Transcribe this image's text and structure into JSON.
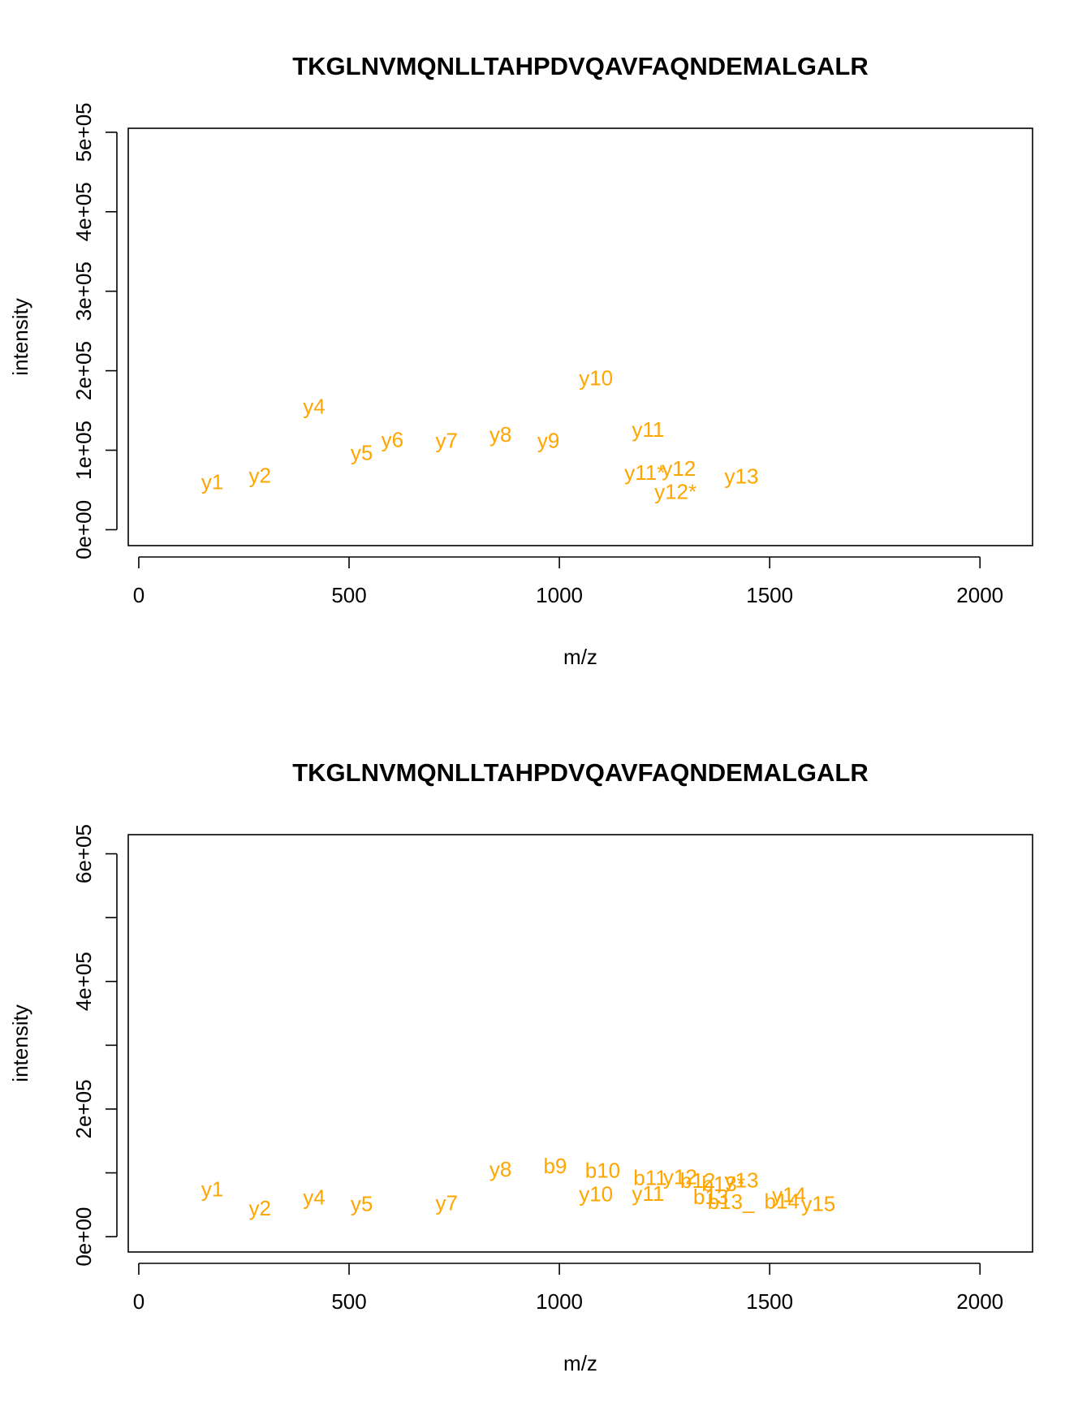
{
  "colors": {
    "label": "#FFA500",
    "axis": "#000000"
  },
  "chart_data": [
    {
      "type": "scatter",
      "title": "TKGLNVMQNLLTAHPDVQAVFAQNDEMALGALR",
      "xlabel": "m/z",
      "ylabel": "intensity",
      "xlim": [
        -25,
        2125
      ],
      "ylim": [
        -20000,
        505000
      ],
      "xticks": [
        0,
        500,
        1000,
        1500,
        2000
      ],
      "xtick_labels": [
        "0",
        "500",
        "1000",
        "1500",
        "2000"
      ],
      "yticks": [
        0,
        100000,
        200000,
        300000,
        400000,
        500000
      ],
      "ytick_labels": [
        "0e+00",
        "1e+05",
        "2e+05",
        "3e+05",
        "4e+05",
        "5e+05"
      ],
      "labels": [
        {
          "text": "y1",
          "x": 175,
          "y": 58000
        },
        {
          "text": "y2",
          "x": 288,
          "y": 66000
        },
        {
          "text": "y4",
          "x": 417,
          "y": 153000
        },
        {
          "text": "y5",
          "x": 530,
          "y": 95000
        },
        {
          "text": "y6",
          "x": 603,
          "y": 111000
        },
        {
          "text": "y7",
          "x": 732,
          "y": 110000
        },
        {
          "text": "y8",
          "x": 860,
          "y": 118000
        },
        {
          "text": "y9",
          "x": 974,
          "y": 110000
        },
        {
          "text": "y10",
          "x": 1087,
          "y": 189000
        },
        {
          "text": "y11",
          "x": 1211,
          "y": 124000
        },
        {
          "text": "y11*",
          "x": 1203,
          "y": 70000
        },
        {
          "text": "y12",
          "x": 1284,
          "y": 75000
        },
        {
          "text": "y12*",
          "x": 1276,
          "y": 46000
        },
        {
          "text": "y13",
          "x": 1433,
          "y": 65000
        }
      ]
    },
    {
      "type": "scatter",
      "title": "TKGLNVMQNLLTAHPDVQAVFAQNDEMALGALR",
      "xlabel": "m/z",
      "ylabel": "intensity",
      "xlim": [
        -25,
        2125
      ],
      "ylim": [
        -24000,
        630000
      ],
      "xticks": [
        0,
        500,
        1000,
        1500,
        2000
      ],
      "xtick_labels": [
        "0",
        "500",
        "1000",
        "1500",
        "2000"
      ],
      "yticks": [
        0,
        100000,
        200000,
        300000,
        400000,
        500000,
        600000
      ],
      "ytick_labels": [
        "0e+00",
        "",
        "2e+05",
        "",
        "4e+05",
        "",
        "6e+05"
      ],
      "labels": [
        {
          "text": "y1",
          "x": 175,
          "y": 72000
        },
        {
          "text": "y2",
          "x": 288,
          "y": 42000
        },
        {
          "text": "y4",
          "x": 417,
          "y": 59000
        },
        {
          "text": "y5",
          "x": 530,
          "y": 49000
        },
        {
          "text": "y7",
          "x": 732,
          "y": 50000
        },
        {
          "text": "y8",
          "x": 860,
          "y": 103000
        },
        {
          "text": "b9",
          "x": 990,
          "y": 108000
        },
        {
          "text": "b10",
          "x": 1103,
          "y": 101000
        },
        {
          "text": "y10",
          "x": 1087,
          "y": 64000
        },
        {
          "text": "b11",
          "x": 1216,
          "y": 90000
        },
        {
          "text": "y11",
          "x": 1211,
          "y": 65000
        },
        {
          "text": "y12",
          "x": 1287,
          "y": 91000
        },
        {
          "text": "b12",
          "x": 1329,
          "y": 85000
        },
        {
          "text": "b13*",
          "x": 1390,
          "y": 80000
        },
        {
          "text": "b13",
          "x": 1360,
          "y": 60000
        },
        {
          "text": "y13",
          "x": 1433,
          "y": 86000
        },
        {
          "text": "b13_",
          "x": 1408,
          "y": 52000
        },
        {
          "text": "y14",
          "x": 1546,
          "y": 63000
        },
        {
          "text": "b14",
          "x": 1529,
          "y": 53000
        },
        {
          "text": "y15",
          "x": 1616,
          "y": 49000
        }
      ]
    }
  ]
}
